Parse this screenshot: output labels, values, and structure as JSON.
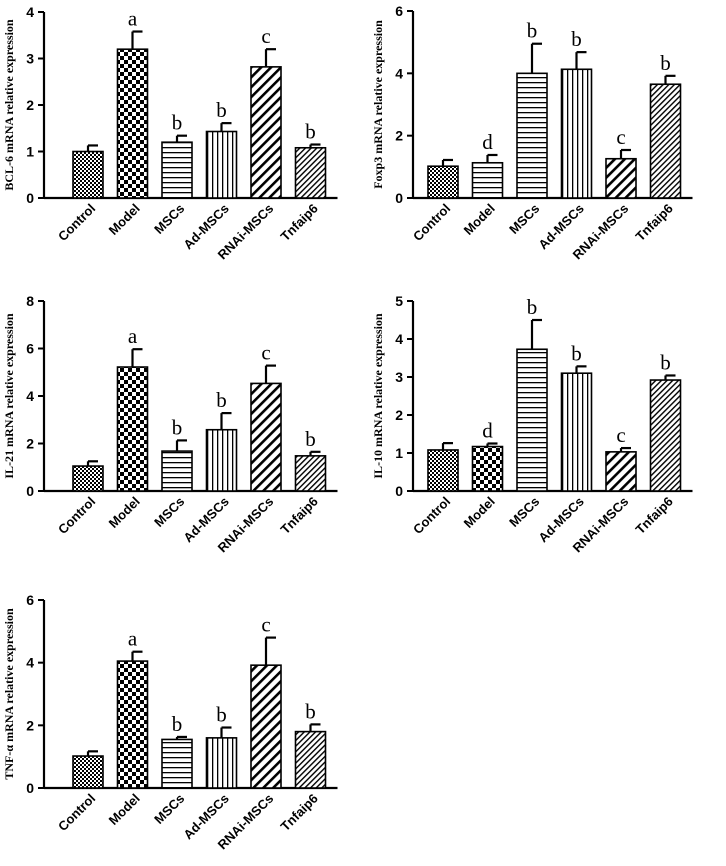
{
  "chart_data": [
    {
      "type": "bar",
      "title": "",
      "xlabel": "",
      "ylabel": "BCL-6 mRNA relative expression",
      "ylim": [
        0,
        4
      ],
      "yticks": [
        0,
        1,
        2,
        3,
        4
      ],
      "categories": [
        "Control",
        "Model",
        "MSCs",
        "Ad-MSCs",
        "RNAi-MSCs",
        "Tnfaip6"
      ],
      "values": [
        1.0,
        3.2,
        1.2,
        1.43,
        2.82,
        1.08
      ],
      "errors": [
        0.13,
        0.38,
        0.14,
        0.18,
        0.38,
        0.07
      ],
      "significance": [
        "",
        "a",
        "b",
        "b",
        "c",
        "b"
      ],
      "patterns": [
        "dots",
        "checker",
        "hlines",
        "vlines",
        "diag-wide",
        "diag-tight"
      ]
    },
    {
      "type": "bar",
      "title": "",
      "xlabel": "",
      "ylabel": "Foxp3 mRNA relative expression",
      "ylim": [
        0,
        6
      ],
      "yticks": [
        0,
        2,
        4,
        6
      ],
      "categories": [
        "Control",
        "Model",
        "MSCs",
        "Ad-MSCs",
        "RNAi-MSCs",
        "Tnfaip6"
      ],
      "values": [
        1.02,
        1.13,
        4.0,
        4.13,
        1.26,
        3.65
      ],
      "errors": [
        0.2,
        0.25,
        0.95,
        0.55,
        0.28,
        0.27
      ],
      "significance": [
        "",
        "d",
        "b",
        "b",
        "c",
        "b"
      ],
      "patterns": [
        "dots",
        "hlines",
        "hlines",
        "vlines",
        "diag-wide",
        "diag-tight"
      ]
    },
    {
      "type": "bar",
      "title": "",
      "xlabel": "",
      "ylabel": "IL-21 mRNA relative expression",
      "ylim": [
        0,
        8
      ],
      "yticks": [
        0,
        2,
        4,
        6,
        8
      ],
      "categories": [
        "Control",
        "Model",
        "MSCs",
        "Ad-MSCs",
        "RNAi-MSCs",
        "Tnfaip6"
      ],
      "values": [
        1.05,
        5.22,
        1.68,
        2.58,
        4.53,
        1.48
      ],
      "errors": [
        0.2,
        0.75,
        0.45,
        0.7,
        0.75,
        0.17
      ],
      "significance": [
        "",
        "a",
        "b",
        "b",
        "c",
        "b"
      ],
      "patterns": [
        "dots",
        "checker",
        "hlines",
        "vlines",
        "diag-wide",
        "diag-tight"
      ]
    },
    {
      "type": "bar",
      "title": "",
      "xlabel": "",
      "ylabel": "IL-10 mRNA relative expression",
      "ylim": [
        0,
        5
      ],
      "yticks": [
        0,
        1,
        2,
        3,
        4,
        5
      ],
      "categories": [
        "Control",
        "Model",
        "MSCs",
        "Ad-MSCs",
        "RNAi-MSCs",
        "Tnfaip6"
      ],
      "values": [
        1.08,
        1.17,
        3.73,
        3.1,
        1.03,
        2.92
      ],
      "errors": [
        0.18,
        0.08,
        0.77,
        0.18,
        0.1,
        0.12
      ],
      "significance": [
        "",
        "d",
        "b",
        "b",
        "c",
        "b"
      ],
      "patterns": [
        "dots",
        "checker",
        "hlines",
        "vlines",
        "diag-wide",
        "diag-tight"
      ]
    },
    {
      "type": "bar",
      "title": "",
      "xlabel": "",
      "ylabel": "TNF-α mRNA relative expression",
      "ylim": [
        0,
        6
      ],
      "yticks": [
        0,
        2,
        4,
        6
      ],
      "categories": [
        "Control",
        "Model",
        "MSCs",
        "Ad-MSCs",
        "RNAi-MSCs",
        "Tnfaip6"
      ],
      "values": [
        1.02,
        4.05,
        1.55,
        1.6,
        3.92,
        1.8
      ],
      "errors": [
        0.15,
        0.3,
        0.08,
        0.33,
        0.88,
        0.23
      ],
      "significance": [
        "",
        "a",
        "b",
        "b",
        "c",
        "b"
      ],
      "patterns": [
        "dots",
        "checker",
        "hlines",
        "vlines",
        "diag-wide",
        "diag-tight"
      ]
    }
  ]
}
